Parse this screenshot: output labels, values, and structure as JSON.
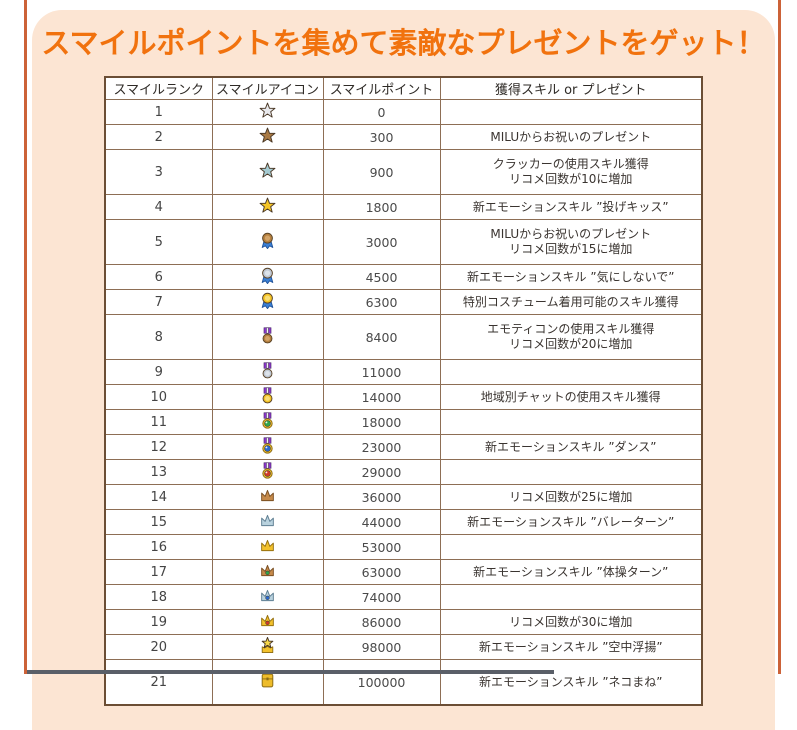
{
  "page": {
    "title": "スマイルポイントを集めて素敵なプレゼントをゲット！",
    "colors": {
      "accent_orange": "#f1720e",
      "panel_bg": "#fce5d3",
      "side_line": "#cc6238",
      "table_border": "#8d6e55",
      "table_border_outer": "#6b4e35",
      "cell_bg": "#ffffff",
      "text": "#3a3a3a"
    }
  },
  "icon_colors": {
    "white": "#e9e9ec",
    "bronze": "#aa7a44",
    "light_blue": "#a5cbd2",
    "gold": "#f5c527",
    "silver": "#bfc7d2",
    "ribbon_blue": "#3b7fd4",
    "ribbon_purple": "#8a35cc",
    "emerald": "#2fa54a",
    "sapphire": "#2a6ad0",
    "ruby": "#d03a28",
    "crown_bronze": "#c68a4a",
    "crown_silver": "#b9d2de",
    "crown_gold": "#f2c12c"
  },
  "table": {
    "headers": [
      "スマイルランク",
      "スマイルアイコン",
      "スマイルポイント",
      "獲得スキル or プレゼント"
    ],
    "rows": [
      {
        "rank": "1",
        "icon": "star-white",
        "points": "0",
        "prize": []
      },
      {
        "rank": "2",
        "icon": "star-bronze",
        "points": "300",
        "prize": [
          "MILUからお祝いのプレゼント"
        ]
      },
      {
        "rank": "3",
        "icon": "star-blue",
        "points": "900",
        "prize": [
          "クラッカーの使用スキル獲得",
          "リコメ回数が10に増加"
        ]
      },
      {
        "rank": "4",
        "icon": "star-gold",
        "points": "1800",
        "prize": [
          "新エモーションスキル ”投げキッス”"
        ]
      },
      {
        "rank": "5",
        "icon": "rosette-bronze",
        "points": "3000",
        "prize": [
          "MILUからお祝いのプレゼント",
          "リコメ回数が15に増加"
        ]
      },
      {
        "rank": "6",
        "icon": "rosette-silver",
        "points": "4500",
        "prize": [
          "新エモーションスキル ”気にしないで”"
        ]
      },
      {
        "rank": "7",
        "icon": "rosette-gold",
        "points": "6300",
        "prize": [
          "特別コスチューム着用可能のスキル獲得"
        ]
      },
      {
        "rank": "8",
        "icon": "medal-bronze",
        "points": "8400",
        "prize": [
          "エモティコンの使用スキル獲得",
          "リコメ回数が20に増加"
        ]
      },
      {
        "rank": "9",
        "icon": "medal-silver",
        "points": "11000",
        "prize": []
      },
      {
        "rank": "10",
        "icon": "medal-gold",
        "points": "14000",
        "prize": [
          "地域別チャットの使用スキル獲得"
        ]
      },
      {
        "rank": "11",
        "icon": "medal-emerald",
        "points": "18000",
        "prize": []
      },
      {
        "rank": "12",
        "icon": "medal-sapphire",
        "points": "23000",
        "prize": [
          "新エモーションスキル ”ダンス”"
        ]
      },
      {
        "rank": "13",
        "icon": "medal-ruby",
        "points": "29000",
        "prize": []
      },
      {
        "rank": "14",
        "icon": "crown-bronze",
        "points": "36000",
        "prize": [
          "リコメ回数が25に増加"
        ]
      },
      {
        "rank": "15",
        "icon": "crown-silver",
        "points": "44000",
        "prize": [
          "新エモーションスキル ”バレーターン”"
        ]
      },
      {
        "rank": "16",
        "icon": "crown-gold",
        "points": "53000",
        "prize": []
      },
      {
        "rank": "17",
        "icon": "crown-emerald",
        "points": "63000",
        "prize": [
          "新エモーションスキル ”体操ターン”"
        ]
      },
      {
        "rank": "18",
        "icon": "crown-sapphire",
        "points": "74000",
        "prize": []
      },
      {
        "rank": "19",
        "icon": "crown-ruby",
        "points": "86000",
        "prize": [
          "リコメ回数が30に増加"
        ]
      },
      {
        "rank": "20",
        "icon": "emblem-star",
        "points": "98000",
        "prize": [
          "新エモーションスキル ”空中浮揚”"
        ]
      },
      {
        "rank": "21",
        "icon": "chest-gold",
        "points": "100000",
        "prize": [
          "新エモーションスキル ”ネコまね”"
        ]
      }
    ]
  }
}
